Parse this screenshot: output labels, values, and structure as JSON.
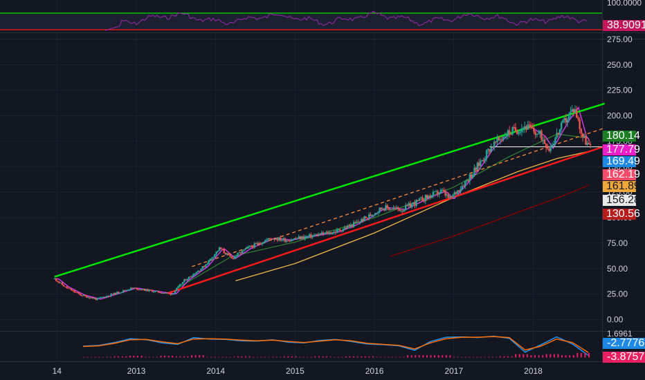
{
  "colors": {
    "background": "#131722",
    "axis_text": "#d1d4dc",
    "grid": "#1e2230",
    "up_candle": "#26a69a",
    "down_candle": "#ef5350",
    "rsi_line": "#9c27b0",
    "green_trendline": "#00e600",
    "red_trendline": "#ff1a1a",
    "dashed_channel": "#ff8c3a",
    "ma_fast": "#e040fb",
    "ma_slow_gold": "#f0b84a",
    "ma_dark_green": "#2e7d32",
    "ma_dark_red": "#8b0000",
    "macd_line": "#2196f3",
    "macd_signal": "#ff6d00",
    "macd_hist": "#e91e63"
  },
  "chart_data": [
    {
      "type": "line",
      "pane": "rsi",
      "y_ticks": [
        "100.0000"
      ],
      "ylim": [
        0,
        100
      ],
      "levels": [
        {
          "value": 88,
          "color": "#00e600"
        },
        {
          "value": 12,
          "color": "#ff1a1a"
        }
      ],
      "last_value_tag": "38.9091"
    },
    {
      "type": "candlestick",
      "pane": "price",
      "x_tick_labels": [
        "14",
        "2013",
        "2014",
        "2015",
        "2016",
        "2017",
        "2018"
      ],
      "x_tick_years": [
        2012.0,
        2013.0,
        2014.0,
        2015.0,
        2016.0,
        2017.0,
        2018.0
      ],
      "y_ticks": [
        "275.00",
        "250.00",
        "225.00",
        "200.00",
        "175.00",
        "150.00",
        "125.00",
        "100.00",
        "75.00",
        "50.00",
        "25.00",
        "0.00"
      ],
      "ylim": [
        -5,
        277
      ],
      "ohlc_keyframes": [
        {
          "t": 2011.97,
          "v": 40
        },
        {
          "t": 2012.1,
          "v": 32
        },
        {
          "t": 2012.3,
          "v": 24
        },
        {
          "t": 2012.5,
          "v": 20
        },
        {
          "t": 2012.75,
          "v": 26
        },
        {
          "t": 2012.95,
          "v": 31
        },
        {
          "t": 2013.2,
          "v": 28
        },
        {
          "t": 2013.45,
          "v": 25
        },
        {
          "t": 2013.6,
          "v": 38
        },
        {
          "t": 2013.85,
          "v": 52
        },
        {
          "t": 2014.05,
          "v": 70
        },
        {
          "t": 2014.2,
          "v": 60
        },
        {
          "t": 2014.4,
          "v": 70
        },
        {
          "t": 2014.7,
          "v": 80
        },
        {
          "t": 2014.9,
          "v": 78
        },
        {
          "t": 2015.2,
          "v": 82
        },
        {
          "t": 2015.5,
          "v": 86
        },
        {
          "t": 2015.7,
          "v": 92
        },
        {
          "t": 2015.9,
          "v": 100
        },
        {
          "t": 2016.1,
          "v": 110
        },
        {
          "t": 2016.35,
          "v": 108
        },
        {
          "t": 2016.6,
          "v": 118
        },
        {
          "t": 2016.85,
          "v": 126
        },
        {
          "t": 2016.95,
          "v": 118
        },
        {
          "t": 2017.25,
          "v": 145
        },
        {
          "t": 2017.45,
          "v": 168
        },
        {
          "t": 2017.65,
          "v": 182
        },
        {
          "t": 2017.9,
          "v": 190
        },
        {
          "t": 2018.1,
          "v": 180
        },
        {
          "t": 2018.2,
          "v": 168
        },
        {
          "t": 2018.4,
          "v": 195
        },
        {
          "t": 2018.52,
          "v": 208
        },
        {
          "t": 2018.62,
          "v": 180
        },
        {
          "t": 2018.72,
          "v": 168
        }
      ],
      "trendlines": [
        {
          "name": "",
          "color": "#00e600",
          "points": [
            [
              2011.97,
              42
            ],
            [
              2018.9,
              212
            ]
          ]
        },
        {
          "name": "",
          "color": "#ff1a1a",
          "points": [
            [
              2013.4,
              26
            ],
            [
              2018.9,
              170
            ]
          ]
        },
        {
          "name": "",
          "color": "#ff8c3a",
          "dashed": true,
          "points": [
            [
              2013.7,
              52
            ],
            [
              2018.9,
              188
            ]
          ]
        }
      ],
      "moving_averages": [
        {
          "color": "#f0b84a",
          "points": [
            [
              2014.25,
              38
            ],
            [
              2015.0,
              55
            ],
            [
              2016.0,
              85
            ],
            [
              2017.0,
              120
            ],
            [
              2017.8,
              145
            ],
            [
              2018.3,
              158
            ],
            [
              2018.7,
              165
            ]
          ]
        },
        {
          "color": "#8b0000",
          "points": [
            [
              2016.2,
              62
            ],
            [
              2017.0,
              82
            ],
            [
              2017.8,
              105
            ],
            [
              2018.4,
              122
            ],
            [
              2018.7,
              132
            ]
          ]
        },
        {
          "color": "#2e7d32",
          "points": [
            [
              2013.5,
              30
            ],
            [
              2014.2,
              62
            ],
            [
              2015.0,
              76
            ],
            [
              2016.0,
              100
            ],
            [
              2017.0,
              130
            ],
            [
              2017.7,
              160
            ],
            [
              2018.3,
              182
            ],
            [
              2018.7,
              178
            ]
          ]
        }
      ],
      "horizontal_lines": [
        {
          "value": 169.49,
          "from": 2017.45,
          "to": 2018.75,
          "color": "#ffffff"
        }
      ],
      "price_tags": [
        {
          "label": "180.14",
          "value": 180.14,
          "bg": "#1b7e23",
          "fg": "#ffffff"
        },
        {
          "label": "177.79",
          "value": 177.79,
          "bg": "#e91ec8",
          "fg": "#ffffff"
        },
        {
          "label": "169.49",
          "value": 169.49,
          "bg": "#1e88e5",
          "fg": "#ffffff"
        },
        {
          "label": "162.19",
          "value": 162.19,
          "bg": "#f44b6a",
          "fg": "#ffffff"
        },
        {
          "label": "161.89",
          "value": 161.89,
          "bg": "#f0a73a",
          "fg": "#131722"
        },
        {
          "label": "156.28",
          "value": 156.28,
          "bg": "#e8e8e8",
          "fg": "#131722"
        },
        {
          "label": "130.56",
          "value": 130.56,
          "bg": "#b71c1c",
          "fg": "#ffffff"
        }
      ]
    },
    {
      "type": "line",
      "pane": "macd",
      "y_ticks": [
        "1.6961"
      ],
      "series": [
        {
          "color": "#2196f3",
          "values": [
            0.2,
            0.4,
            1.2,
            2.3,
            2.0,
            1.1,
            0.7,
            2.6,
            2.2,
            2.1,
            1.7,
            1.6,
            2.0,
            1.3,
            1.1,
            1.8,
            2.1,
            1.5,
            0.8,
            0.6,
            0.3,
            -1.0,
            1.5,
            2.7,
            2.8,
            2.6,
            3.0,
            2.4,
            -1.5,
            0.6,
            2.8,
            0.8,
            -2.4
          ]
        },
        {
          "color": "#ff6d00",
          "values": [
            0.1,
            0.3,
            1.0,
            2.0,
            2.1,
            1.4,
            0.9,
            2.2,
            2.3,
            2.2,
            1.9,
            1.7,
            1.9,
            1.5,
            1.2,
            1.6,
            2.0,
            1.7,
            1.0,
            0.7,
            0.4,
            -0.6,
            1.1,
            2.3,
            2.7,
            2.7,
            2.9,
            2.6,
            -0.9,
            0.2,
            2.2,
            1.2,
            -1.6
          ]
        }
      ],
      "last_value_tags": [
        {
          "label": "-2.7776",
          "bg": "#1e88e5",
          "fg": "#ffffff"
        },
        {
          "label": "-3.8757",
          "bg": "#e91e63",
          "fg": "#ffffff"
        }
      ]
    }
  ]
}
